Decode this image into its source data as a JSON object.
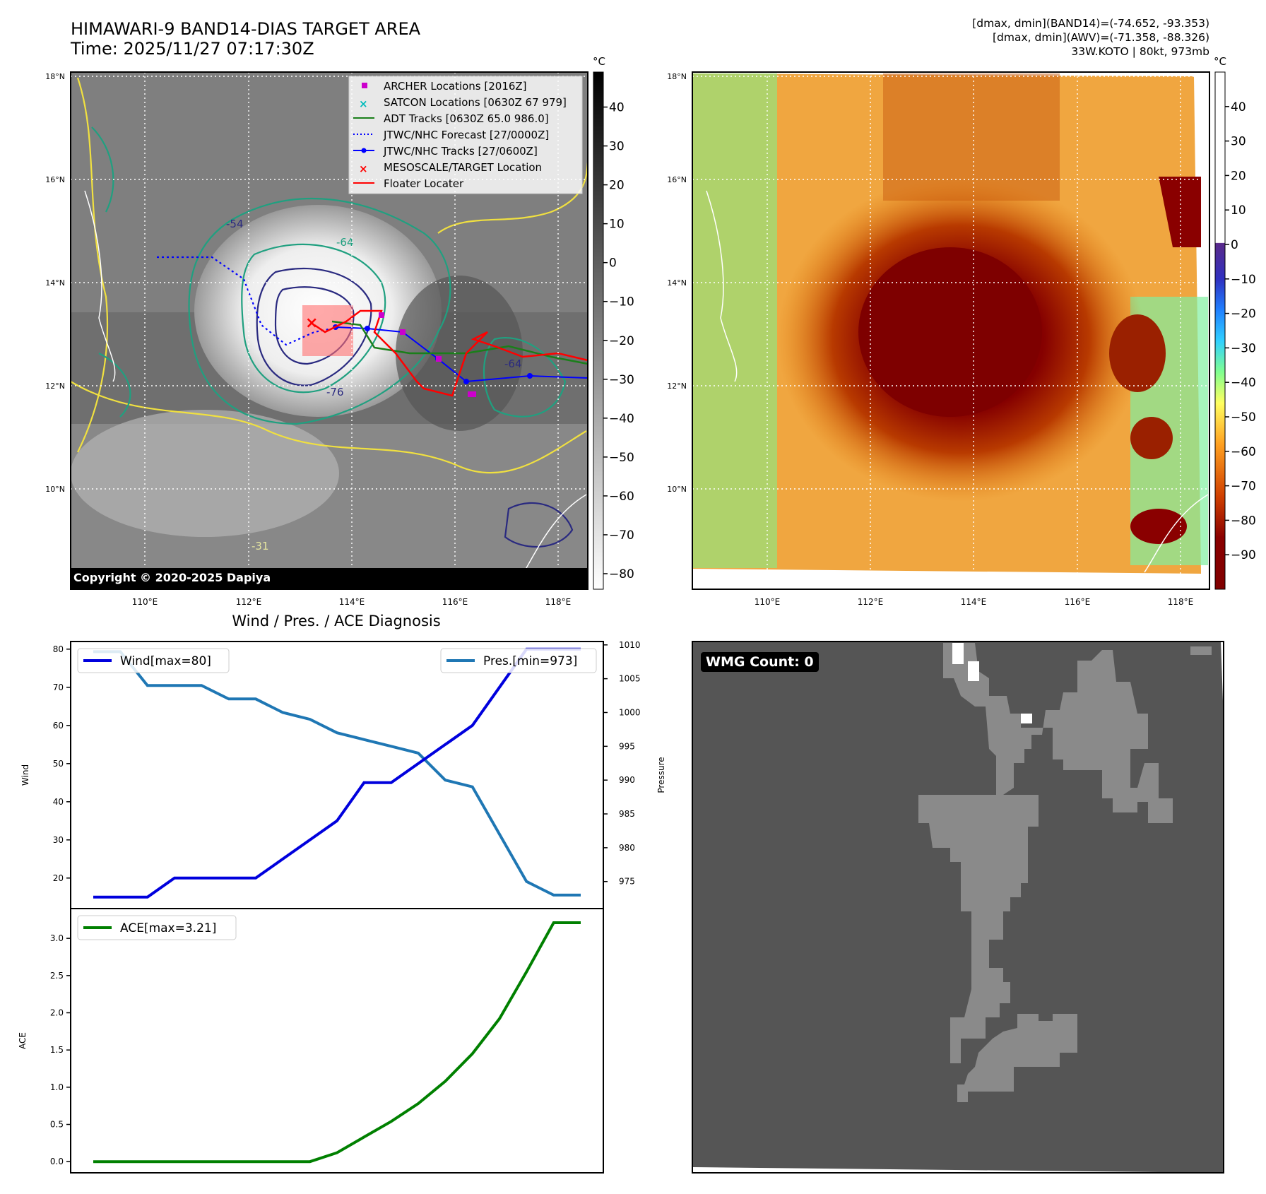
{
  "header": {
    "title_line1": "HIMAWARI-9 BAND14-DIAS TARGET AREA",
    "title_line2": "Time: 2025/11/27 07:17:30Z",
    "info_line1": "[dmax, dmin](BAND14)=(-74.652, -93.353)",
    "info_line2": "[dmax, dmin](AWV)=(-71.358, -88.326)",
    "info_line3": "33W.KOTO | 80kt, 973mb"
  },
  "colors": {
    "wind": "#0000dd",
    "pressure": "#1f77b4",
    "ace": "#008000",
    "track_red": "#ff0000",
    "archer": "#cc00cc",
    "satcon": "#00bbbb",
    "adt": "#1a7f1a",
    "jtwc": "#0000ff"
  },
  "map_ir": {
    "copyright": "Copyright © 2020-2025 Dapiya",
    "colorbar_unit": "°C",
    "colorbar_ticks": [
      "40",
      "30",
      "20",
      "10",
      "0",
      "−10",
      "−20",
      "−30",
      "−40",
      "−50",
      "−60",
      "−70",
      "−80"
    ],
    "lat_labels": [
      "18°N",
      "16°N",
      "14°N",
      "12°N",
      "10°N"
    ],
    "lon_labels": [
      "110°E",
      "112°E",
      "114°E",
      "116°E",
      "118°E"
    ],
    "contour_labels": [
      "-54",
      "-64",
      "-76",
      "-31",
      "-64"
    ],
    "legend": [
      {
        "label": "ARCHER Locations [2016Z]",
        "symbol": "square",
        "color": "#cc00cc"
      },
      {
        "label": "SATCON Locations [0630Z 67 979]",
        "symbol": "x",
        "color": "#00bbbb"
      },
      {
        "label": "ADT Tracks [0630Z 65.0 986.0]",
        "symbol": "line",
        "color": "#1a7f1a"
      },
      {
        "label": "JTWC/NHC Forecast [27/0000Z]",
        "symbol": "dotted",
        "color": "#0000ff"
      },
      {
        "label": "JTWC/NHC Tracks [27/0600Z]",
        "symbol": "line-dot",
        "color": "#0000ff"
      },
      {
        "label": "MESOSCALE/TARGET Location",
        "symbol": "x",
        "color": "#ff0000"
      },
      {
        "label": "Floater Locater",
        "symbol": "line",
        "color": "#ff0000"
      }
    ]
  },
  "map_awv": {
    "colorbar_unit": "°C",
    "colorbar_ticks": [
      "40",
      "30",
      "20",
      "10",
      "0",
      "−10",
      "−20",
      "−30",
      "−40",
      "−50",
      "−60",
      "−70",
      "−80",
      "−90"
    ],
    "lat_labels": [
      "18°N",
      "16°N",
      "14°N",
      "12°N",
      "10°N"
    ],
    "lon_labels": [
      "110°E",
      "112°E",
      "114°E",
      "116°E",
      "118°E"
    ]
  },
  "wmg": {
    "label": "WMG Count: 0"
  },
  "chart_data": [
    {
      "type": "line",
      "title": "Wind / Pres. / ACE Diagnosis",
      "x": [
        0,
        1,
        2,
        3,
        4,
        5,
        6,
        7,
        8,
        9,
        10,
        11,
        12,
        13,
        14,
        15,
        16,
        17,
        18
      ],
      "series": [
        {
          "name": "Wind[max=80]",
          "axis": "left",
          "values": [
            15,
            15,
            15,
            20,
            20,
            20,
            20,
            25,
            30,
            35,
            45,
            45,
            50,
            55,
            60,
            70,
            80,
            80,
            80
          ]
        },
        {
          "name": "Pres.[min=973]",
          "axis": "right",
          "values": [
            1009,
            1009,
            1004,
            1004,
            1004,
            1002,
            1002,
            1000,
            999,
            997,
            996,
            995,
            994,
            990,
            989,
            982,
            975,
            973,
            973
          ]
        }
      ],
      "ylabel": "Wind",
      "y2label": "Pressure",
      "ylim": [
        12,
        82
      ],
      "y2lim": [
        971,
        1010.5
      ],
      "yticks": [
        20,
        30,
        40,
        50,
        60,
        70,
        80
      ],
      "y2ticks": [
        975,
        980,
        985,
        990,
        995,
        1000,
        1005,
        1010
      ]
    },
    {
      "type": "line",
      "x": [
        0,
        1,
        2,
        3,
        4,
        5,
        6,
        7,
        8,
        9,
        10,
        11,
        12,
        13,
        14,
        15,
        16,
        17,
        18
      ],
      "series": [
        {
          "name": "ACE[max=3.21]",
          "values": [
            0,
            0,
            0,
            0,
            0,
            0,
            0,
            0,
            0,
            0.12,
            0.33,
            0.54,
            0.78,
            1.08,
            1.45,
            1.92,
            2.55,
            3.21,
            3.21
          ]
        }
      ],
      "ylabel": "ACE",
      "ylim": [
        -0.15,
        3.4
      ],
      "yticks": [
        0.0,
        0.5,
        1.0,
        1.5,
        2.0,
        2.5,
        3.0
      ],
      "ytick_labels": [
        "0.0",
        "0.5",
        "1.0",
        "1.5",
        "2.0",
        "2.5",
        "3.0"
      ]
    }
  ]
}
